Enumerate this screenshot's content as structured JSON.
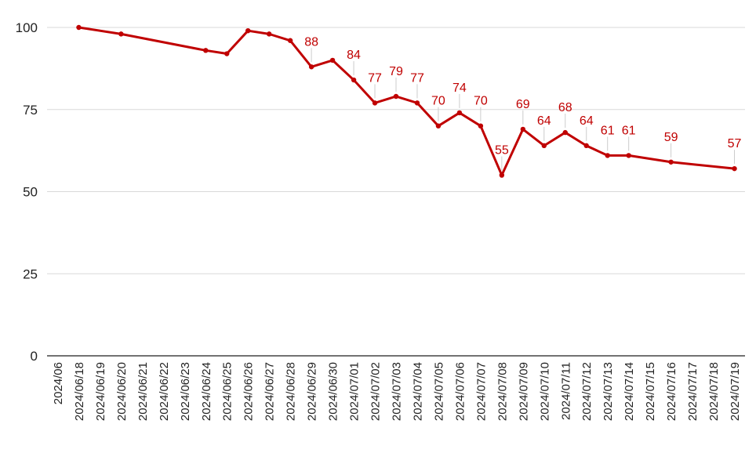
{
  "chart_data": {
    "type": "line",
    "title": "",
    "xlabel": "",
    "ylabel": "",
    "ylim": [
      0,
      100
    ],
    "yticks": [
      0,
      25,
      50,
      75,
      100
    ],
    "grid": true,
    "legend": "none",
    "series_color": "#c00000",
    "grid_color": "#d9d9d9",
    "axis_color": "#444444",
    "x_tick_labels": [
      "2024/06",
      "2024/06/18",
      "2024/06/19",
      "2024/06/20",
      "2024/06/21",
      "2024/06/22",
      "2024/06/23",
      "2024/06/24",
      "2024/06/25",
      "2024/06/26",
      "2024/06/27",
      "2024/06/28",
      "2024/06/29",
      "2024/06/30",
      "2024/07/01",
      "2024/07/02",
      "2024/07/03",
      "2024/07/04",
      "2024/07/05",
      "2024/07/06",
      "2024/07/07",
      "2024/07/08",
      "2024/07/09",
      "2024/07/10",
      "2024/07/11",
      "2024/07/12",
      "2024/07/13",
      "2024/07/14",
      "2024/07/15",
      "2024/07/16",
      "2024/07/17",
      "2024/07/18",
      "2024/07/19"
    ],
    "series": [
      {
        "points": [
          {
            "x": "2024/06/18",
            "y": 100
          },
          {
            "x": "2024/06/20",
            "y": 98
          },
          {
            "x": "2024/06/24",
            "y": 93
          },
          {
            "x": "2024/06/25",
            "y": 92
          },
          {
            "x": "2024/06/26",
            "y": 99
          },
          {
            "x": "2024/06/27",
            "y": 98
          },
          {
            "x": "2024/06/28",
            "y": 96
          },
          {
            "x": "2024/06/29",
            "y": 88,
            "label": "88"
          },
          {
            "x": "2024/06/30",
            "y": 90
          },
          {
            "x": "2024/07/01",
            "y": 84,
            "label": "84"
          },
          {
            "x": "2024/07/02",
            "y": 77,
            "label": "77"
          },
          {
            "x": "2024/07/03",
            "y": 79,
            "label": "79"
          },
          {
            "x": "2024/07/04",
            "y": 77,
            "label": "77"
          },
          {
            "x": "2024/07/05",
            "y": 70,
            "label": "70"
          },
          {
            "x": "2024/07/06",
            "y": 74,
            "label": "74"
          },
          {
            "x": "2024/07/07",
            "y": 70,
            "label": "70"
          },
          {
            "x": "2024/07/08",
            "y": 55,
            "label": "55"
          },
          {
            "x": "2024/07/09",
            "y": 69,
            "label": "69"
          },
          {
            "x": "2024/07/10",
            "y": 64,
            "label": "64"
          },
          {
            "x": "2024/07/11",
            "y": 68,
            "label": "68"
          },
          {
            "x": "2024/07/12",
            "y": 64,
            "label": "64"
          },
          {
            "x": "2024/07/13",
            "y": 61,
            "label": "61"
          },
          {
            "x": "2024/07/14",
            "y": 61,
            "label": "61"
          },
          {
            "x": "2024/07/16",
            "y": 59,
            "label": "59"
          },
          {
            "x": "2024/07/19",
            "y": 57,
            "label": "57"
          }
        ]
      }
    ]
  }
}
